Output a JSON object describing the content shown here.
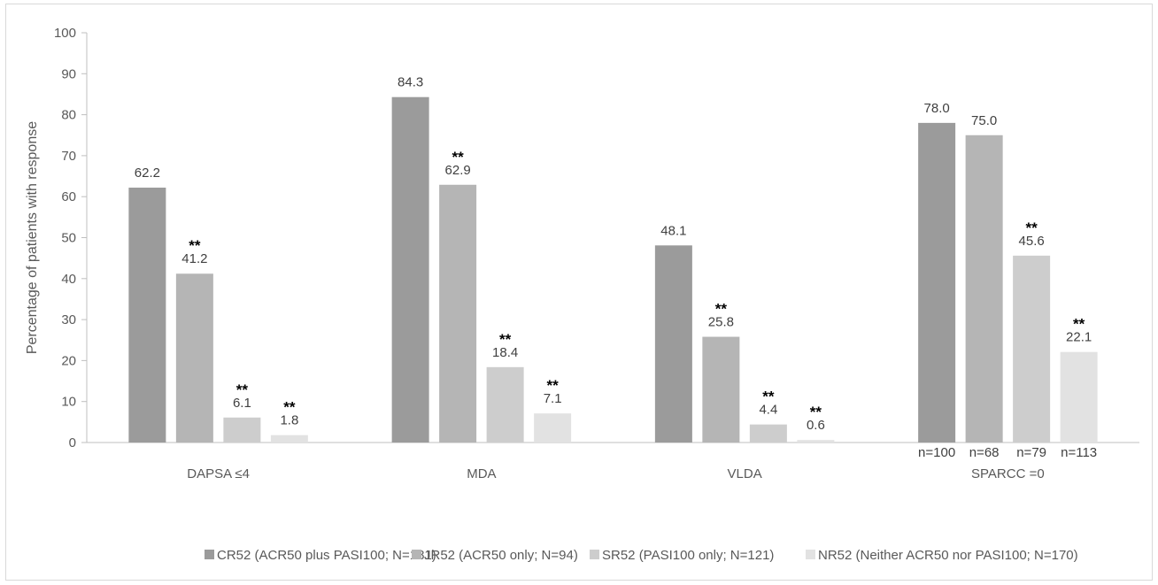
{
  "chart_data": {
    "type": "bar",
    "title": "",
    "ylabel": "Percentage of patients with response",
    "xlabel": "",
    "ylim": [
      0,
      100
    ],
    "yticks": [
      0,
      10,
      20,
      30,
      40,
      50,
      60,
      70,
      80,
      90,
      100
    ],
    "categories": [
      "DAPSA ≤4",
      "MDA",
      "VLDA",
      "SPARCC =0"
    ],
    "series": [
      {
        "name": "CR52 (ACR50 plus PASI100; N=181)",
        "color": "#9b9b9b",
        "values": [
          62.2,
          84.3,
          48.1,
          78.0
        ],
        "labels": [
          "62.2",
          "84.3",
          "48.1",
          "78.0"
        ],
        "significance": [
          "",
          "",
          "",
          ""
        ]
      },
      {
        "name": "JR52 (ACR50 only; N=94)",
        "color": "#b5b5b5",
        "values": [
          41.2,
          62.9,
          25.8,
          75.0
        ],
        "labels": [
          "41.2",
          "62.9",
          "25.8",
          "75.0"
        ],
        "significance": [
          "**",
          "**",
          "**",
          ""
        ]
      },
      {
        "name": "SR52 (PASI100 only; N=121)",
        "color": "#cdcdcd",
        "values": [
          6.1,
          18.4,
          4.4,
          45.6
        ],
        "labels": [
          "6.1",
          "18.4",
          "4.4",
          "45.6"
        ],
        "significance": [
          "**",
          "**",
          "**",
          "**"
        ]
      },
      {
        "name": "NR52 (Neither ACR50 nor PASI100; N=170)",
        "color": "#e2e2e2",
        "values": [
          1.8,
          7.1,
          0.6,
          22.1
        ],
        "labels": [
          "1.8",
          "7.1",
          "0.6",
          "22.1"
        ],
        "significance": [
          "**",
          "**",
          "**",
          "**"
        ]
      }
    ],
    "category_annotations": [
      {
        "category": "SPARCC =0",
        "labels": [
          "n=100",
          "n=68",
          "n=79",
          "n=113"
        ]
      }
    ],
    "grid": false,
    "legend_position": "bottom"
  }
}
